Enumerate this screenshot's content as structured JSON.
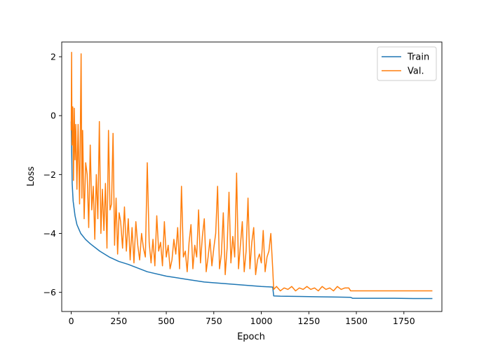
{
  "chart_data": {
    "type": "line",
    "xlabel": "Epoch",
    "ylabel": "Loss",
    "xlim": [
      -50,
      1950
    ],
    "ylim": [
      -6.65,
      2.5
    ],
    "xticks": [
      0,
      250,
      500,
      750,
      1000,
      1250,
      1500,
      1750
    ],
    "yticks": [
      2,
      0,
      -2,
      -4,
      -6
    ],
    "ytick_labels": [
      "2",
      "0",
      "−2",
      "−4",
      "−6"
    ],
    "xtick_labels": [
      "0",
      "250",
      "500",
      "750",
      "1000",
      "1250",
      "1500",
      "1750"
    ],
    "grid": false,
    "legend_position": "top-right",
    "series": [
      {
        "name": "Train",
        "color": "#1f77b4",
        "x": [
          0,
          5,
          10,
          20,
          30,
          40,
          50,
          75,
          100,
          150,
          200,
          250,
          300,
          400,
          500,
          600,
          700,
          800,
          900,
          1000,
          1060,
          1065,
          1100,
          1200,
          1300,
          1400,
          1470,
          1480,
          1600,
          1700,
          1800,
          1900
        ],
        "values": [
          -0.2,
          -2.3,
          -2.9,
          -3.4,
          -3.7,
          -3.85,
          -4.0,
          -4.2,
          -4.35,
          -4.6,
          -4.8,
          -4.95,
          -5.05,
          -5.3,
          -5.45,
          -5.55,
          -5.65,
          -5.7,
          -5.75,
          -5.8,
          -5.82,
          -6.12,
          -6.13,
          -6.14,
          -6.15,
          -6.16,
          -6.17,
          -6.2,
          -6.2,
          -6.2,
          -6.21,
          -6.21
        ]
      },
      {
        "name": "Val.",
        "color": "#ff7f0e",
        "x": [
          0,
          2,
          4,
          8,
          12,
          16,
          20,
          24,
          30,
          36,
          44,
          52,
          56,
          60,
          68,
          76,
          84,
          92,
          100,
          108,
          116,
          124,
          132,
          140,
          148,
          156,
          164,
          172,
          180,
          188,
          196,
          204,
          212,
          220,
          228,
          236,
          244,
          252,
          260,
          270,
          280,
          290,
          300,
          310,
          320,
          330,
          340,
          350,
          360,
          370,
          380,
          390,
          400,
          410,
          420,
          430,
          440,
          450,
          460,
          470,
          480,
          490,
          500,
          510,
          520,
          530,
          540,
          550,
          560,
          570,
          580,
          590,
          600,
          610,
          620,
          630,
          640,
          650,
          660,
          670,
          680,
          690,
          700,
          710,
          720,
          730,
          740,
          750,
          760,
          770,
          780,
          790,
          800,
          810,
          820,
          830,
          840,
          850,
          860,
          870,
          880,
          890,
          900,
          910,
          920,
          930,
          940,
          950,
          960,
          970,
          980,
          990,
          1000,
          1010,
          1020,
          1030,
          1040,
          1050,
          1060,
          1065,
          1080,
          1100,
          1120,
          1140,
          1160,
          1180,
          1200,
          1220,
          1240,
          1260,
          1280,
          1300,
          1320,
          1340,
          1360,
          1380,
          1400,
          1420,
          1440,
          1460,
          1470,
          1480,
          1550,
          1650,
          1750,
          1900
        ],
        "values": [
          -0.5,
          2.15,
          -1.0,
          0.3,
          -2.2,
          0.25,
          -1.5,
          -0.3,
          -2.5,
          -0.3,
          -3.0,
          2.1,
          -2.8,
          -0.5,
          -3.5,
          -1.6,
          -2.0,
          -3.8,
          -1.0,
          -3.2,
          -2.4,
          -4.2,
          -2.0,
          -3.5,
          -0.2,
          -4.0,
          -2.5,
          -3.9,
          -2.3,
          -4.5,
          -0.5,
          -3.2,
          -3.0,
          -0.6,
          -4.4,
          -2.8,
          -4.7,
          -3.3,
          -3.6,
          -4.5,
          -3.1,
          -4.6,
          -3.5,
          -4.9,
          -3.8,
          -5.0,
          -3.6,
          -4.4,
          -4.9,
          -4.0,
          -4.5,
          -4.8,
          -1.6,
          -4.3,
          -5.0,
          -4.2,
          -5.1,
          -3.4,
          -4.6,
          -4.3,
          -5.1,
          -3.6,
          -4.8,
          -4.4,
          -5.2,
          -4.9,
          -4.2,
          -4.7,
          -3.8,
          -5.2,
          -2.4,
          -4.8,
          -4.6,
          -5.3,
          -4.3,
          -3.7,
          -5.2,
          -4.4,
          -4.8,
          -3.2,
          -5.0,
          -4.1,
          -3.5,
          -5.3,
          -4.8,
          -4.2,
          -5.1,
          -4.5,
          -4.0,
          -2.4,
          -5.2,
          -4.7,
          -3.3,
          -5.4,
          -4.5,
          -2.6,
          -5.0,
          -4.1,
          -4.8,
          -1.95,
          -5.2,
          -4.4,
          -3.6,
          -5.3,
          -4.6,
          -2.8,
          -5.2,
          -4.3,
          -3.8,
          -5.4,
          -4.9,
          -4.7,
          -5.0,
          -3.9,
          -5.3,
          -4.8,
          -4.6,
          -4.0,
          -5.2,
          -5.9,
          -5.8,
          -5.95,
          -5.85,
          -5.9,
          -5.8,
          -5.95,
          -5.85,
          -5.9,
          -5.8,
          -5.9,
          -5.85,
          -5.95,
          -5.8,
          -5.9,
          -5.85,
          -5.95,
          -5.8,
          -5.9,
          -5.85,
          -5.85,
          -5.95,
          -5.95,
          -5.95,
          -5.95,
          -5.95,
          -5.95
        ]
      }
    ]
  }
}
